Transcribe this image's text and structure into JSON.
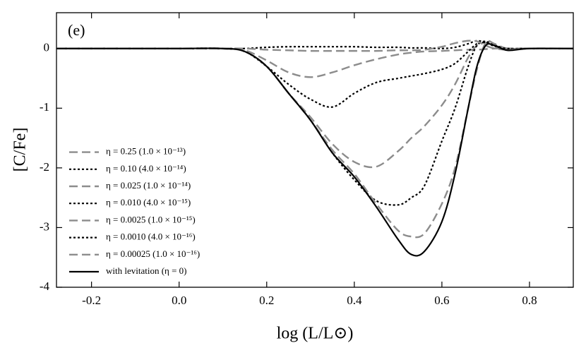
{
  "chart_data": {
    "type": "line",
    "panel_label": "(e)",
    "xlabel": "log (L/L⊙)",
    "ylabel": "[C/Fe]",
    "x": [
      -0.28,
      -0.2,
      -0.1,
      0,
      0.1,
      0.15,
      0.2,
      0.25,
      0.3,
      0.35,
      0.4,
      0.45,
      0.5,
      0.53,
      0.56,
      0.6,
      0.63,
      0.66,
      0.68,
      0.7,
      0.72,
      0.75,
      0.8,
      0.9
    ],
    "series": [
      {
        "name": "η = 0.25 (1.0 × 10⁻¹³)",
        "color": "#8c8c8c",
        "style": "dashed",
        "values": [
          0,
          0,
          0,
          0,
          0,
          -0.03,
          -0.2,
          -0.4,
          -0.48,
          -0.4,
          -0.28,
          -0.18,
          -0.1,
          -0.07,
          -0.05,
          -0.04,
          -0.03,
          -0.02,
          -0.02,
          -0.01,
          0,
          0,
          0,
          0
        ]
      },
      {
        "name": "η = 0.10 (4.0 × 10⁻¹⁴)",
        "color": "#000000",
        "style": "dotted",
        "values": [
          0,
          0,
          0,
          0,
          0,
          -0.05,
          -0.3,
          -0.6,
          -0.85,
          -0.98,
          -0.75,
          -0.57,
          -0.5,
          -0.46,
          -0.42,
          -0.35,
          -0.25,
          -0.05,
          0.08,
          0.12,
          0.06,
          0,
          0,
          0
        ]
      },
      {
        "name": "η = 0.025 (1.0 × 10⁻¹⁴)",
        "color": "#8c8c8c",
        "style": "dashed",
        "values": [
          0,
          0,
          0,
          0,
          0,
          -0.05,
          -0.3,
          -0.75,
          -1.15,
          -1.6,
          -1.9,
          -1.98,
          -1.72,
          -1.5,
          -1.3,
          -0.95,
          -0.6,
          -0.15,
          0.05,
          0.1,
          0.05,
          0,
          0,
          0
        ]
      },
      {
        "name": "η = 0.010 (4.0 × 10⁻¹⁵)",
        "color": "#000000",
        "style": "dotted",
        "values": [
          0,
          0,
          0,
          0,
          0,
          -0.05,
          -0.3,
          -0.75,
          -1.2,
          -1.75,
          -2.2,
          -2.55,
          -2.62,
          -2.5,
          -2.3,
          -1.55,
          -1.0,
          -0.3,
          0.05,
          0.1,
          0.05,
          0,
          0,
          0
        ]
      },
      {
        "name": "η = 0.0025 (1.0 × 10⁻¹⁵)",
        "color": "#8c8c8c",
        "style": "dashed",
        "values": [
          0,
          0,
          0,
          0,
          0,
          -0.05,
          -0.3,
          -0.75,
          -1.2,
          -1.7,
          -2.1,
          -2.6,
          -3.05,
          -3.15,
          -3.1,
          -2.6,
          -2.0,
          -1.0,
          -0.35,
          0.1,
          0.08,
          0,
          0,
          0
        ]
      },
      {
        "name": "η = 0.0010 (4.0 × 10⁻¹⁶)",
        "color": "#000000",
        "style": "dotted",
        "values": [
          0,
          0,
          0,
          0,
          0,
          0,
          0.02,
          0.03,
          0.03,
          0.03,
          0.03,
          0.02,
          0.02,
          0.01,
          0.01,
          0,
          0.02,
          0.08,
          0.13,
          0.1,
          0.04,
          0,
          0,
          0
        ]
      },
      {
        "name": "η = 0.00025 (1.0 × 10⁻¹⁶)",
        "color": "#8c8c8c",
        "style": "dashed",
        "values": [
          0,
          0,
          0,
          0,
          0,
          0,
          -0.02,
          -0.03,
          -0.04,
          -0.04,
          -0.04,
          -0.04,
          -0.03,
          -0.03,
          -0.02,
          0.03,
          0.09,
          0.13,
          0.12,
          0.05,
          0,
          -0.02,
          0,
          0
        ]
      },
      {
        "name": "with levitation (η = 0)",
        "color": "#000000",
        "style": "solid",
        "values": [
          0,
          0,
          0,
          0,
          0,
          -0.05,
          -0.3,
          -0.75,
          -1.2,
          -1.75,
          -2.15,
          -2.65,
          -3.2,
          -3.45,
          -3.4,
          -2.9,
          -2.1,
          -1.0,
          -0.3,
          0.05,
          0.05,
          -0.03,
          0,
          0
        ]
      }
    ],
    "xlim": [
      -0.28,
      0.9
    ],
    "ylim": [
      -4,
      0.6
    ],
    "xticks": [
      -0.2,
      {
        "value": 0,
        "label": "0.0"
      },
      0.2,
      0.4,
      0.6,
      0.8
    ],
    "yticks": [
      -4,
      -3,
      -2,
      -1,
      0
    ],
    "grid": false,
    "legend": "lower left"
  }
}
